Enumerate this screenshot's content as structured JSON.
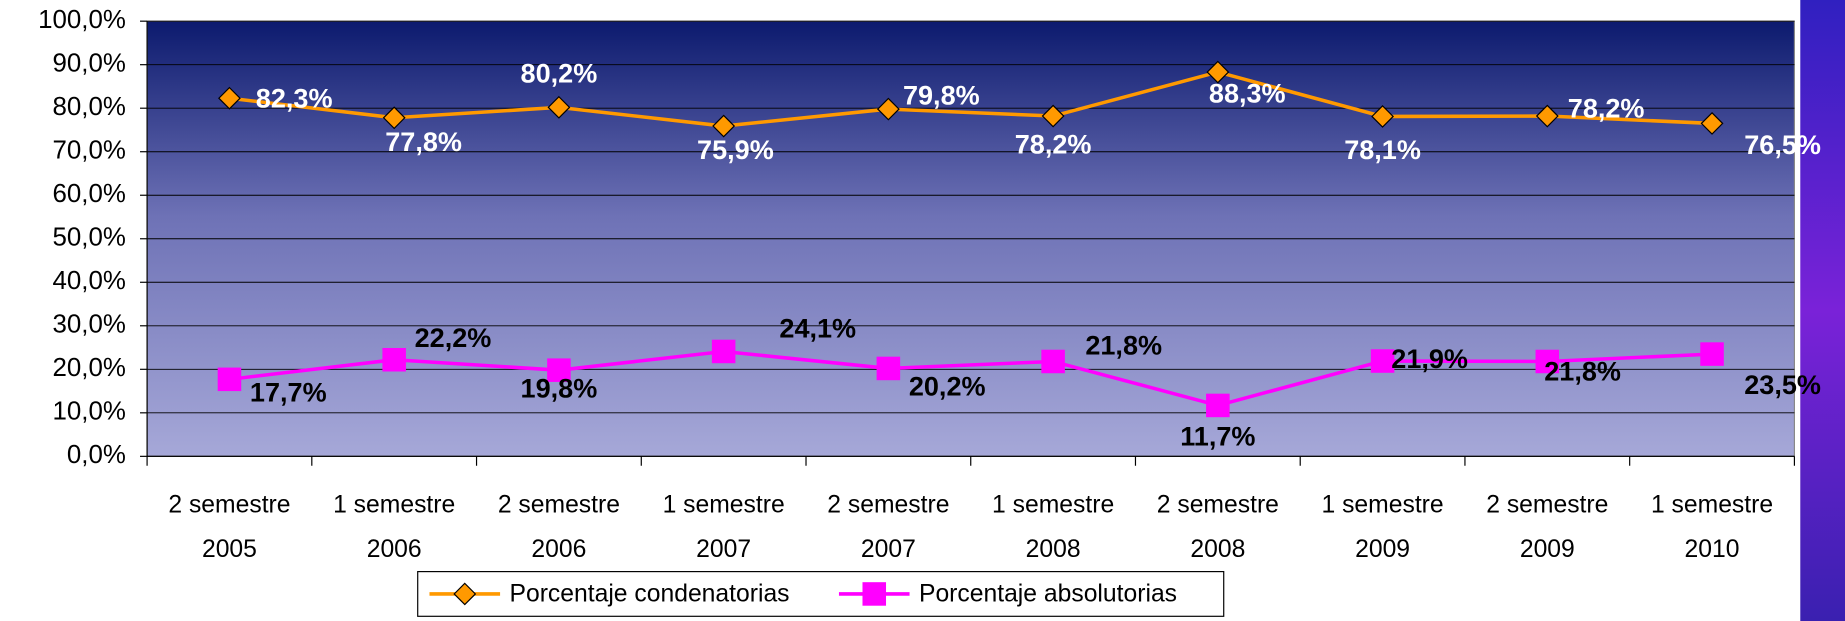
{
  "chart_data": {
    "type": "line",
    "categories": [
      [
        "2 semestre",
        "2005"
      ],
      [
        "1 semestre",
        "2006"
      ],
      [
        "2 semestre",
        "2006"
      ],
      [
        "1 semestre",
        "2007"
      ],
      [
        "2 semestre",
        "2007"
      ],
      [
        "1 semestre",
        "2008"
      ],
      [
        "2 semestre",
        "2008"
      ],
      [
        "1 semestre",
        "2009"
      ],
      [
        "2 semestre",
        "2009"
      ],
      [
        "1 semestre",
        "2010"
      ]
    ],
    "series": [
      {
        "name": "Porcentaje condenatorias",
        "color": "#ff9900",
        "marker": "diamond",
        "values": [
          82.3,
          77.8,
          80.2,
          75.9,
          79.8,
          78.2,
          88.3,
          78.1,
          78.2,
          76.5
        ],
        "value_labels": [
          "82,3%",
          "77,8%",
          "80,2%",
          "75,9%",
          "79,8%",
          "78,2%",
          "88,3%",
          "78,1%",
          "78,2%",
          "76,5%"
        ]
      },
      {
        "name": "Porcentaje absolutorias",
        "color": "#ff00ff",
        "marker": "square",
        "values": [
          17.7,
          22.2,
          19.8,
          24.1,
          20.2,
          21.8,
          11.7,
          21.9,
          21.8,
          23.5
        ],
        "value_labels": [
          "17,7%",
          "22,2%",
          "19,8%",
          "24,1%",
          "20,2%",
          "21,8%",
          "11,7%",
          "21,9%",
          "21,8%",
          "23,5%"
        ]
      }
    ],
    "ylim": [
      0,
      100
    ],
    "yticks": [
      {
        "value": 0,
        "label": "0,0%"
      },
      {
        "value": 10,
        "label": "10,0%"
      },
      {
        "value": 20,
        "label": "20,0%"
      },
      {
        "value": 30,
        "label": "30,0%"
      },
      {
        "value": 40,
        "label": "40,0%"
      },
      {
        "value": 50,
        "label": "50,0%"
      },
      {
        "value": 60,
        "label": "60,0%"
      },
      {
        "value": 70,
        "label": "70,0%"
      },
      {
        "value": 80,
        "label": "80,0%"
      },
      {
        "value": 90,
        "label": "90,0%"
      },
      {
        "value": 100,
        "label": "100,0%"
      }
    ],
    "grid": true,
    "legend": "bottom"
  }
}
